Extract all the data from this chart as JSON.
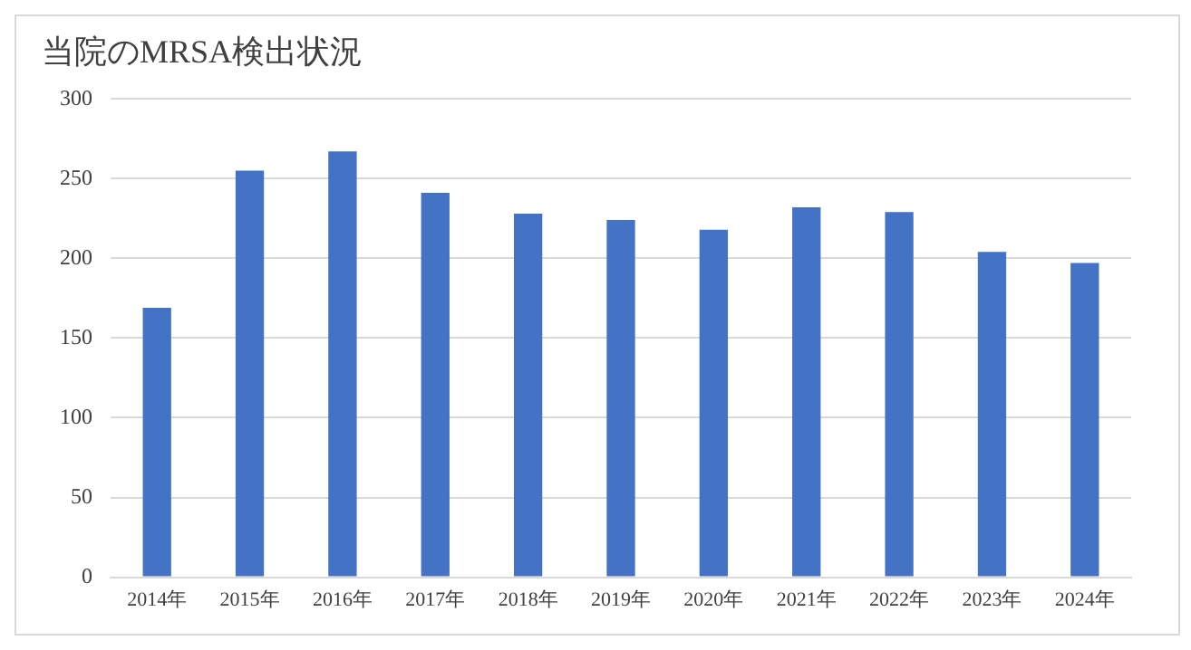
{
  "chart_data": {
    "type": "bar",
    "title": "当院のMRSA検出状況",
    "categories": [
      "2014年",
      "2015年",
      "2016年",
      "2017年",
      "2018年",
      "2019年",
      "2020年",
      "2021年",
      "2022年",
      "2023年",
      "2024年"
    ],
    "values": [
      169,
      255,
      267,
      241,
      228,
      224,
      218,
      232,
      229,
      204,
      197
    ],
    "color": "#4472c4",
    "ylim": [
      0,
      300
    ],
    "yticks": [
      0,
      50,
      100,
      150,
      200,
      250,
      300
    ],
    "grid": "y",
    "legend": false
  }
}
